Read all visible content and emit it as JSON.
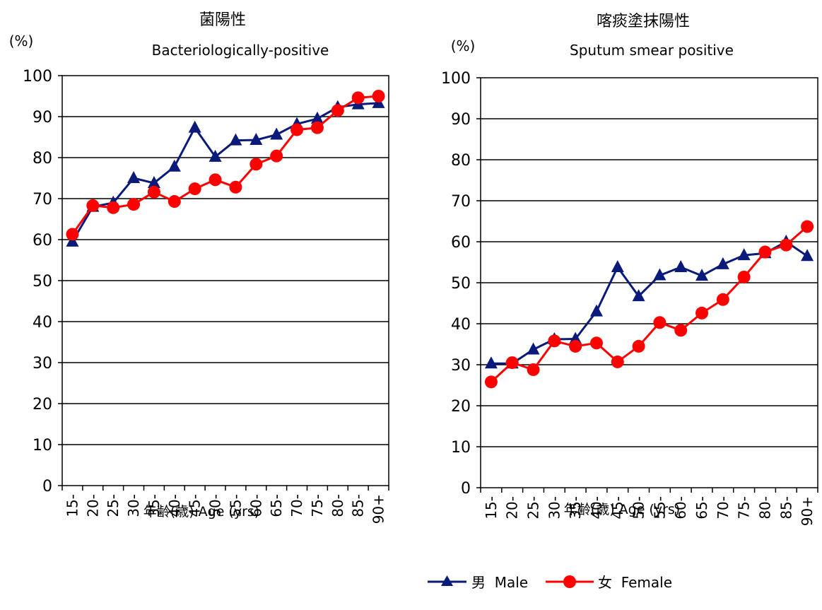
{
  "chart_data": [
    {
      "type": "line",
      "title": "菌陽性",
      "subtitle": "Bacteriologically-positive",
      "ylabel": "(%)",
      "xlabel": "年齢(歳)  Age (yrs)",
      "ylim": [
        0,
        100
      ],
      "yticks": [
        0,
        10,
        20,
        30,
        40,
        50,
        60,
        70,
        80,
        90,
        100
      ],
      "grid": true,
      "categories": [
        "15-",
        "20-",
        "25-",
        "30-",
        "35-",
        "40-",
        "45-",
        "50-",
        "55-",
        "60-",
        "65-",
        "70-",
        "75-",
        "80-",
        "85-",
        "90+"
      ],
      "series": [
        {
          "name": "男  Male",
          "color": "#0a1a7a",
          "marker": "triangle",
          "values": [
            59.5,
            68.0,
            69.0,
            75.0,
            73.8,
            77.8,
            87.3,
            80.2,
            84.2,
            84.3,
            85.6,
            88.2,
            89.5,
            92.3,
            93.0,
            93.3
          ]
        },
        {
          "name": "女  Female",
          "color": "#ff0000",
          "marker": "circle",
          "values": [
            61.3,
            68.3,
            67.8,
            68.6,
            71.6,
            69.3,
            72.4,
            74.6,
            72.8,
            78.4,
            80.4,
            86.8,
            87.3,
            91.5,
            94.6,
            95.0
          ]
        }
      ]
    },
    {
      "type": "line",
      "title": "喀痰塗抹陽性",
      "subtitle": "Sputum smear positive",
      "ylabel": "(%)",
      "xlabel": "年齢(歳)  Age (yrs)",
      "ylim": [
        0,
        100
      ],
      "yticks": [
        0,
        10,
        20,
        30,
        40,
        50,
        60,
        70,
        80,
        90,
        100
      ],
      "grid": true,
      "categories": [
        "15-",
        "20-",
        "25-",
        "30-",
        "35-",
        "40-",
        "45-",
        "50-",
        "55-",
        "60-",
        "65-",
        "70-",
        "75-",
        "80-",
        "85-",
        "90+"
      ],
      "series": [
        {
          "name": "男  Male",
          "color": "#0a1a7a",
          "marker": "triangle",
          "values": [
            30.3,
            30.3,
            33.7,
            36.2,
            36.3,
            43.0,
            53.8,
            46.7,
            51.8,
            53.8,
            51.7,
            54.5,
            56.7,
            57.2,
            60.0,
            56.5
          ]
        },
        {
          "name": "女  Female",
          "color": "#ff0000",
          "marker": "circle",
          "values": [
            25.8,
            30.5,
            28.8,
            35.8,
            34.5,
            35.3,
            30.7,
            34.5,
            40.3,
            38.4,
            42.6,
            45.9,
            51.4,
            57.5,
            59.2,
            63.7
          ]
        }
      ]
    }
  ],
  "legend": {
    "placement": "bottom-center",
    "male_label": "男  Male",
    "female_label": "女  Female"
  }
}
